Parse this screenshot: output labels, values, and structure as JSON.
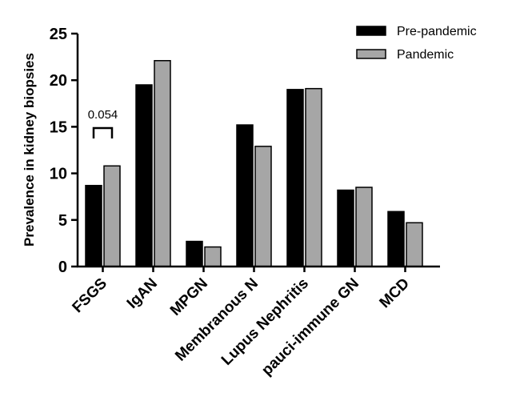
{
  "chart_data": {
    "type": "bar",
    "title": "",
    "xlabel": "",
    "ylabel": "Prevalence in kidney biopsies",
    "ylim": [
      0,
      25
    ],
    "yticks": [
      "0",
      "5",
      "10",
      "15",
      "20",
      "25"
    ],
    "categories": [
      "FSGS",
      "IgAN",
      "MPGN",
      "Membranous N",
      "Lupus Nephritis",
      "pauci-immune GN",
      "MCD"
    ],
    "series": [
      {
        "name": "Pre-pandemic",
        "color": "#000000",
        "values": [
          8.7,
          19.5,
          2.7,
          15.2,
          19.0,
          8.2,
          5.9
        ]
      },
      {
        "name": "Pandemic",
        "color": "#a6a6a6",
        "values": [
          10.8,
          22.1,
          2.1,
          12.9,
          19.1,
          8.5,
          4.7
        ]
      }
    ],
    "legend_position": "top-right",
    "grid": false,
    "annotations": [
      {
        "text": "0.054",
        "category": "FSGS",
        "type": "bracket"
      }
    ]
  }
}
